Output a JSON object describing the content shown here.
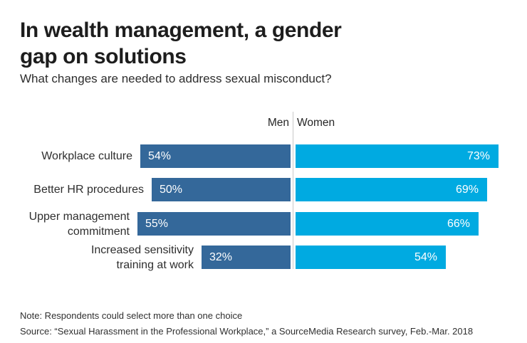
{
  "header": {
    "title": "In wealth management, a gender gap on solutions",
    "title_lines": [
      "In wealth management, a gender",
      "gap on solutions"
    ],
    "subtitle": "What changes are needed to address sexual misconduct?"
  },
  "chart_data": {
    "type": "bar",
    "variant": "diverging-horizontal",
    "title": "In wealth management, a gender gap on solutions",
    "subtitle": "What changes are needed to address sexual misconduct?",
    "categories": [
      "Workplace culture",
      "Better HR procedures",
      "Upper management commitment",
      "Increased sensitivity training at work"
    ],
    "category_display_lines": [
      [
        "Workplace culture"
      ],
      [
        "Better HR procedures"
      ],
      [
        "Upper management",
        "commitment"
      ],
      [
        "Increased sensitivity",
        "training at work"
      ]
    ],
    "series": [
      {
        "name": "Men",
        "values": [
          54,
          50,
          55,
          32
        ],
        "color": "#34689a",
        "side": "left"
      },
      {
        "name": "Women",
        "values": [
          73,
          69,
          66,
          54
        ],
        "color": "#00aae1",
        "side": "right"
      }
    ],
    "value_suffix": "%",
    "value_labels_shown": true,
    "axis_max_percent": 75,
    "legend_position": "top-center-of-divider",
    "grid": false
  },
  "footer": {
    "note": "Note: Respondents could select more than one choice",
    "source": "Source: “Sexual Harassment in the Professional Workplace,” a SourceMedia Research survey, Feb.-Mar. 2018"
  },
  "colors": {
    "men_bar": "#34689a",
    "women_bar": "#00aae1",
    "divider": "#c9c9c9",
    "title_text": "#1d1d1d",
    "body_text": "#2e2e2e",
    "bar_value_text": "#ffffff"
  }
}
